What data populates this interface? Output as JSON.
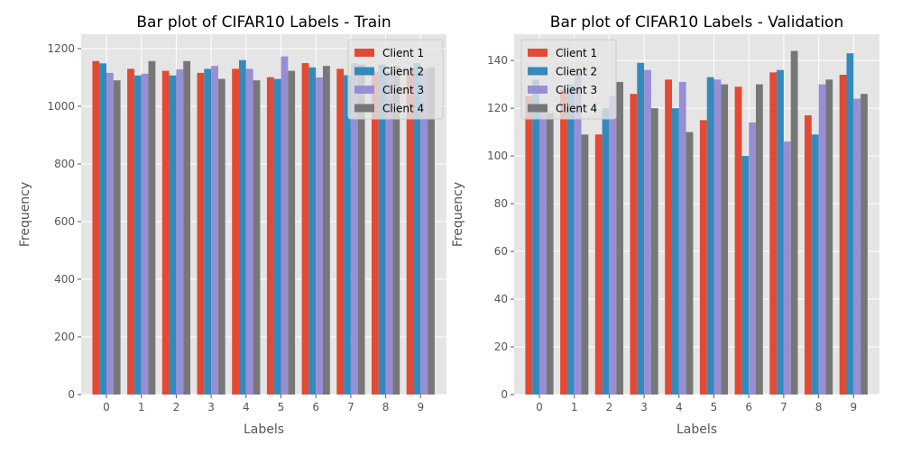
{
  "colors": [
    "#E24A33",
    "#348ABD",
    "#988ED5",
    "#777777"
  ],
  "chart_data": [
    {
      "type": "bar",
      "title": "Bar plot of CIFAR10 Labels - Train",
      "xlabel": "Labels",
      "ylabel": "Frequency",
      "categories": [
        "0",
        "1",
        "2",
        "3",
        "4",
        "5",
        "6",
        "7",
        "8",
        "9"
      ],
      "ylim": [
        0,
        1250
      ],
      "yticks": [
        0,
        200,
        400,
        600,
        800,
        1000,
        1200
      ],
      "grid": true,
      "legend_position": "top-right",
      "series": [
        {
          "name": "Client 1",
          "values": [
            1157,
            1130,
            1123,
            1116,
            1130,
            1101,
            1150,
            1130,
            1120,
            1125
          ]
        },
        {
          "name": "Client 2",
          "values": [
            1149,
            1107,
            1107,
            1130,
            1160,
            1095,
            1135,
            1108,
            1145,
            1150
          ]
        },
        {
          "name": "Client 3",
          "values": [
            1116,
            1113,
            1128,
            1140,
            1130,
            1173,
            1100,
            1150,
            1120,
            1130
          ]
        },
        {
          "name": "Client 4",
          "values": [
            1090,
            1157,
            1157,
            1095,
            1090,
            1123,
            1140,
            1145,
            1140,
            1135
          ]
        }
      ]
    },
    {
      "type": "bar",
      "title": "Bar plot of CIFAR10 Labels - Validation",
      "xlabel": "Labels",
      "ylabel": "Frequency",
      "categories": [
        "0",
        "1",
        "2",
        "3",
        "4",
        "5",
        "6",
        "7",
        "8",
        "9"
      ],
      "ylim": [
        0,
        151
      ],
      "yticks": [
        0,
        20,
        40,
        60,
        80,
        100,
        120,
        140
      ],
      "grid": true,
      "legend_position": "top-left",
      "series": [
        {
          "name": "Client 1",
          "values": [
            125,
            128,
            109,
            126,
            132,
            115,
            129,
            135,
            117,
            134
          ]
        },
        {
          "name": "Client 2",
          "values": [
            132,
            130,
            120,
            139,
            120,
            133,
            100,
            136,
            109,
            143
          ]
        },
        {
          "name": "Client 3",
          "values": [
            120,
            135,
            125,
            136,
            131,
            132,
            114,
            106,
            130,
            124
          ]
        },
        {
          "name": "Client 4",
          "values": [
            118,
            109,
            131,
            120,
            110,
            130,
            130,
            144,
            132,
            126
          ]
        }
      ]
    }
  ]
}
